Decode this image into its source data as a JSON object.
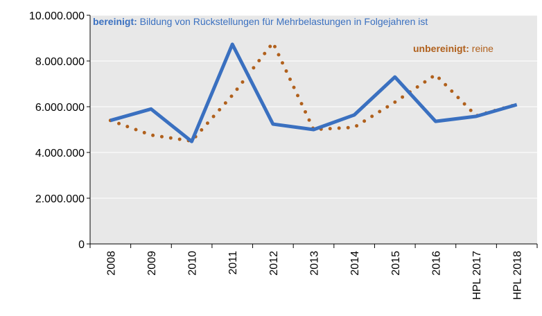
{
  "chart_data": {
    "type": "line",
    "categories": [
      "2008",
      "2009",
      "2010",
      "2011",
      "2012",
      "2013",
      "2014",
      "2015",
      "2016",
      "HPL 2017",
      "HPL 2018"
    ],
    "series": [
      {
        "name": "bereinigt:",
        "color": "#3a70c0",
        "style": "solid",
        "values": [
          5400000,
          5900000,
          4480000,
          8730000,
          5240000,
          5000000,
          5640000,
          7300000,
          5360000,
          5580000,
          6090000
        ]
      },
      {
        "name": "unbereinigt:",
        "color": "#b0601c",
        "style": "dotted",
        "values": [
          5400000,
          4760000,
          4500000,
          6500000,
          8800000,
          5000000,
          5100000,
          6200000,
          7400000,
          5600000,
          6100000
        ]
      }
    ],
    "annotations": [
      "Bildung von Rückstellungen für Mehrbelastungen in Folgejahren ist",
      "reine"
    ],
    "ylim": [
      0,
      10000000
    ],
    "yticks": [
      0,
      {
        "value": 2000000,
        "label": "2.000.000"
      },
      {
        "value": 4000000,
        "label": "4.000.000"
      },
      {
        "value": 6000000,
        "label": "6.000.000"
      },
      {
        "value": 8000000,
        "label": "8.000.000"
      },
      {
        "value": 10000000,
        "label": "10.000.000"
      }
    ],
    "grid": true
  }
}
